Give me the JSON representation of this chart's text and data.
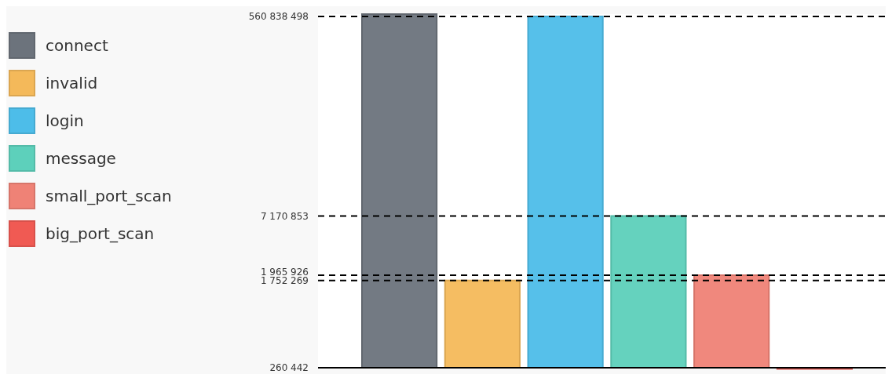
{
  "chart_data": {
    "type": "bar",
    "categories": [
      null,
      null,
      null,
      null,
      null,
      null
    ],
    "series": [
      {
        "name": "connect",
        "color": "#6c737c",
        "values": [
          590000000,
          null,
          null,
          null,
          null,
          null
        ]
      },
      {
        "name": "invalid",
        "color": "#f4b95a",
        "values": [
          null,
          1752269,
          null,
          null,
          null,
          null
        ]
      },
      {
        "name": "login",
        "color": "#4dbde9",
        "values": [
          null,
          null,
          560838498,
          null,
          null,
          null
        ]
      },
      {
        "name": "message",
        "color": "#5dd0bb",
        "values": [
          null,
          null,
          null,
          7170853,
          null,
          null
        ]
      },
      {
        "name": "small_port_scan",
        "color": "#ef8276",
        "values": [
          null,
          null,
          null,
          null,
          1965926,
          null
        ]
      },
      {
        "name": "big_port_scan",
        "color": "#f05a53",
        "values": [
          null,
          null,
          null,
          null,
          null,
          260442
        ]
      }
    ],
    "log": "y",
    "ylim": [
      260442,
      590000000
    ],
    "yticks": [
      {
        "value": 260442,
        "label": "260 442"
      },
      {
        "value": 1752269,
        "label": "1 752 269"
      },
      {
        "value": 1965926,
        "label": "1 965 926"
      },
      {
        "value": 7170853,
        "label": "7 170 853"
      },
      {
        "value": 560838498,
        "label": "560 838 498"
      }
    ],
    "grid": "y",
    "line_style": "dashed",
    "legend": "left"
  }
}
